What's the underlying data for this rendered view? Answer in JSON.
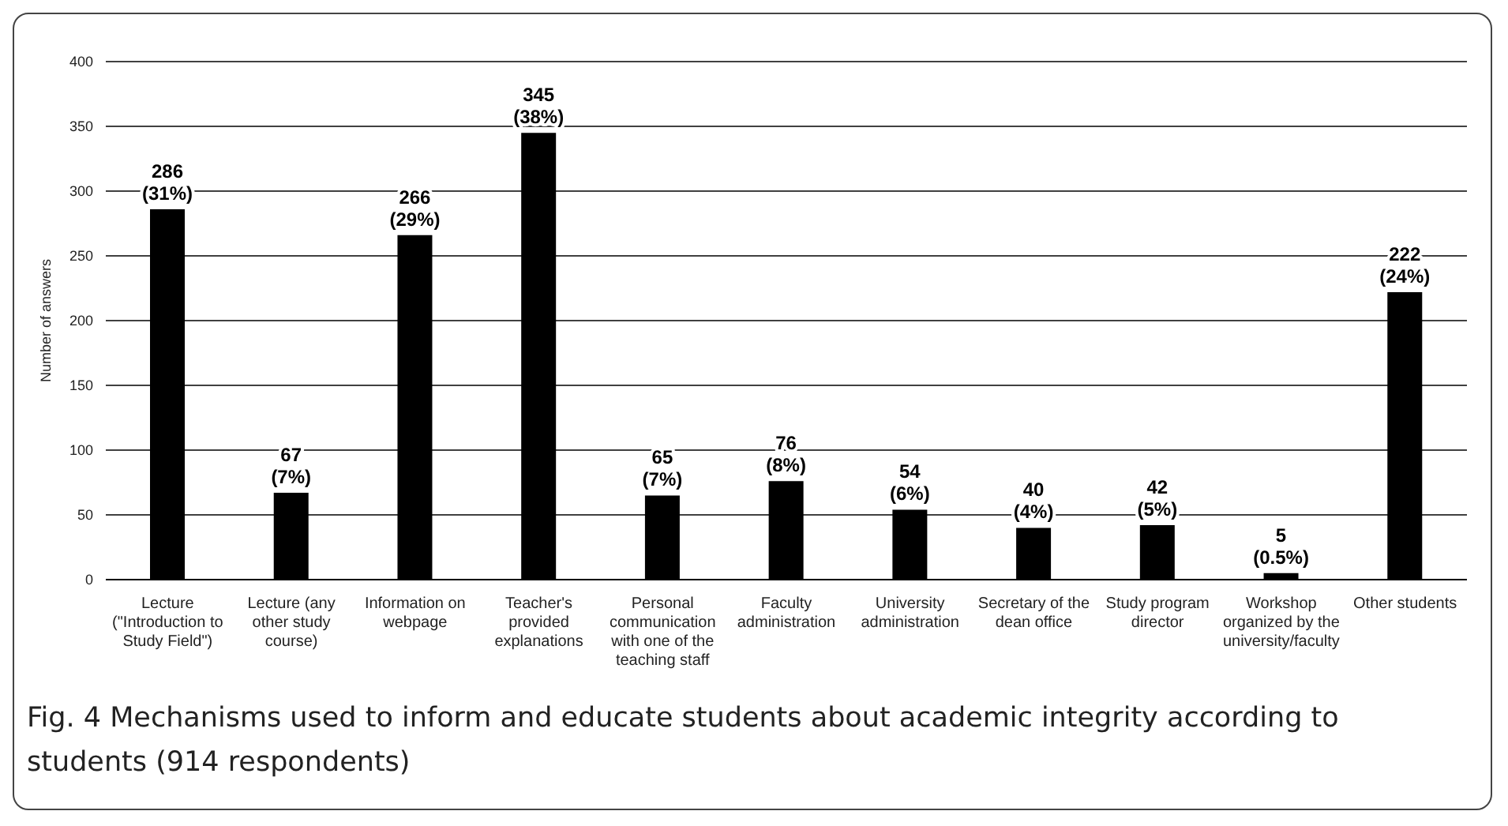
{
  "chart_data": {
    "type": "bar",
    "title": "Fig. 4 Mechanisms used to inform and educate students about academic integrity according to students (914 respondents)",
    "ylabel": "Number of answers",
    "categories": [
      "Lecture (\"Introduction to Study Field\")",
      "Lecture (any other study course)",
      "Information on webpage",
      "Teacher's provided explanations",
      "Personal communication with one of the teaching staff",
      "Faculty administration",
      "University administration",
      "Secretary of the dean office",
      "Study program director",
      "Workshop organized by the university/faculty",
      "Other students"
    ],
    "values": [
      286,
      67,
      266,
      345,
      65,
      76,
      54,
      40,
      42,
      5,
      222
    ],
    "value_labels": [
      "286 (31%)",
      "67 (7%)",
      "266 (29%)",
      "345 (38%)",
      "65 (7%)",
      "76 (8%)",
      "54 (6%)",
      "40 (4%)",
      "42 (5%)",
      "5 (0.5%)",
      "222 (24%)"
    ],
    "color": "#000000",
    "ylim": [
      0,
      400
    ],
    "yticks": [
      0,
      50,
      100,
      150,
      200,
      250,
      300,
      350,
      400
    ],
    "grid": "y"
  }
}
